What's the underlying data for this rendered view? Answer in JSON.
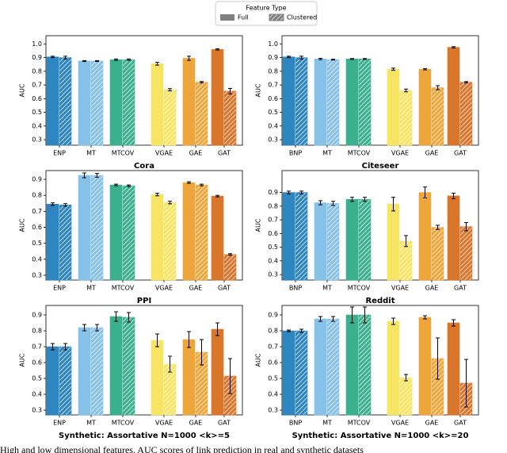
{
  "legend_title": "Feature Type",
  "caption": "High and low dimensional features. AUC scores of link prediction in real and synthetic datasets",
  "chart_data": [
    {
      "type": "bar",
      "title": "Cora",
      "ylabel": "AUC",
      "categories": [
        "ENP",
        "MT",
        "MTCOV",
        "VGAE",
        "GAE",
        "GAT"
      ],
      "category_colors": [
        "#2e86c1",
        "#85c1e9",
        "#3bb08f",
        "#f7e463",
        "#eea63a",
        "#d9762c"
      ],
      "series": [
        {
          "name": "Full",
          "hatch": false,
          "values": [
            0.905,
            0.875,
            0.885,
            0.855,
            0.895,
            0.96
          ],
          "errors": [
            0.005,
            0.003,
            0.005,
            0.01,
            0.015,
            0.005
          ]
        },
        {
          "name": "Clustered",
          "hatch": true,
          "values": [
            0.9,
            0.875,
            0.885,
            0.665,
            0.72,
            0.655
          ],
          "errors": [
            0.01,
            0.003,
            0.005,
            0.008,
            0.005,
            0.02
          ]
        }
      ],
      "ylim": [
        0.26,
        1.06
      ],
      "yticks": [
        0.3,
        0.4,
        0.5,
        0.6,
        0.7,
        0.8,
        0.9,
        {
          "value": 1,
          "label": "1.0"
        }
      ]
    },
    {
      "type": "bar",
      "title": "Citeseer",
      "ylabel": "AUC",
      "categories": [
        "BNP",
        "MT",
        "MTCOV",
        "VGAE",
        "GAE",
        "GAT"
      ],
      "category_colors": [
        "#2e86c1",
        "#85c1e9",
        "#3bb08f",
        "#f7e463",
        "#eea63a",
        "#d9762c"
      ],
      "series": [
        {
          "name": "Full",
          "hatch": false,
          "values": [
            0.905,
            0.89,
            0.89,
            0.815,
            0.815,
            0.975
          ],
          "errors": [
            0.005,
            0.005,
            0.003,
            0.008,
            0.005,
            0.005
          ]
        },
        {
          "name": "Clustered",
          "hatch": true,
          "values": [
            0.9,
            0.885,
            0.89,
            0.66,
            0.68,
            0.72
          ],
          "errors": [
            0.01,
            0.003,
            0.003,
            0.01,
            0.015,
            0.005
          ]
        }
      ],
      "ylim": [
        0.26,
        1.06
      ],
      "yticks": [
        0.3,
        0.4,
        0.5,
        0.6,
        0.7,
        0.8,
        0.9,
        {
          "value": 1,
          "label": "1.0"
        }
      ]
    },
    {
      "type": "bar",
      "title": "PPI",
      "ylabel": "AUC",
      "categories": [
        "ENP",
        "MT",
        "MTCOV",
        "VGAE",
        "GAE",
        "GAT"
      ],
      "category_colors": [
        "#2e86c1",
        "#85c1e9",
        "#3bb08f",
        "#f7e463",
        "#eea63a",
        "#d9762c"
      ],
      "series": [
        {
          "name": "Full",
          "hatch": false,
          "values": [
            0.745,
            0.925,
            0.865,
            0.805,
            0.88,
            0.795
          ],
          "errors": [
            0.008,
            0.015,
            0.005,
            0.008,
            0.005,
            0.005
          ]
        },
        {
          "name": "Clustered",
          "hatch": true,
          "values": [
            0.74,
            0.925,
            0.86,
            0.755,
            0.865,
            0.43
          ],
          "errors": [
            0.008,
            0.012,
            0.005,
            0.008,
            0.005,
            0.005
          ]
        }
      ],
      "ylim": [
        0.27,
        0.955
      ],
      "yticks": [
        0.3,
        0.4,
        0.5,
        0.6,
        0.7,
        0.8,
        0.9
      ]
    },
    {
      "type": "bar",
      "title": "Reddit",
      "ylabel": "AUC",
      "categories": [
        "BNP",
        "MT",
        "MTCOV",
        "VGAE",
        "GAE",
        "GAT"
      ],
      "category_colors": [
        "#2e86c1",
        "#85c1e9",
        "#3bb08f",
        "#f7e463",
        "#eea63a",
        "#d9762c"
      ],
      "series": [
        {
          "name": "Full",
          "hatch": false,
          "values": [
            0.9,
            0.825,
            0.85,
            0.815,
            0.9,
            0.875
          ],
          "errors": [
            0.01,
            0.015,
            0.015,
            0.05,
            0.04,
            0.02
          ]
        },
        {
          "name": "Clustered",
          "hatch": true,
          "values": [
            0.9,
            0.82,
            0.85,
            0.545,
            0.645,
            0.65
          ],
          "errors": [
            0.01,
            0.015,
            0.015,
            0.04,
            0.015,
            0.03
          ]
        }
      ],
      "ylim": [
        0.26,
        1.06
      ],
      "yticks": [
        0.3,
        0.4,
        0.5,
        0.6,
        0.7,
        0.8,
        0.9
      ]
    },
    {
      "type": "bar",
      "title": "Synthetic: Assortative N=1000 <k>=5",
      "ylabel": "AUC",
      "categories": [
        "ENP",
        "MT",
        "MTCOV",
        "VGAE",
        "GAE",
        "GAT"
      ],
      "category_colors": [
        "#2e86c1",
        "#85c1e9",
        "#3bb08f",
        "#f7e463",
        "#eea63a",
        "#d9762c"
      ],
      "series": [
        {
          "name": "Full",
          "hatch": false,
          "values": [
            0.7,
            0.82,
            0.89,
            0.74,
            0.745,
            0.81
          ],
          "errors": [
            0.02,
            0.02,
            0.03,
            0.04,
            0.05,
            0.04
          ]
        },
        {
          "name": "Clustered",
          "hatch": true,
          "values": [
            0.7,
            0.82,
            0.885,
            0.59,
            0.665,
            0.515
          ],
          "errors": [
            0.02,
            0.02,
            0.03,
            0.05,
            0.08,
            0.11
          ]
        }
      ],
      "ylim": [
        0.27,
        0.96
      ],
      "yticks": [
        0.3,
        0.4,
        0.5,
        0.6,
        0.7,
        0.8,
        0.9
      ]
    },
    {
      "type": "bar",
      "title": "Synthetic: Assortative N=1000 <k>=20",
      "ylabel": "AUC",
      "categories": [
        "BNP",
        "MT",
        "MTCOV",
        "VGAE",
        "GAE",
        "GAT"
      ],
      "category_colors": [
        "#2e86c1",
        "#85c1e9",
        "#3bb08f",
        "#f7e463",
        "#eea63a",
        "#d9762c"
      ],
      "series": [
        {
          "name": "Full",
          "hatch": false,
          "values": [
            0.8,
            0.875,
            0.9,
            0.86,
            0.885,
            0.85
          ],
          "errors": [
            0.005,
            0.015,
            0.05,
            0.02,
            0.01,
            0.02
          ]
        },
        {
          "name": "Clustered",
          "hatch": true,
          "values": [
            0.8,
            0.875,
            0.9,
            0.505,
            0.625,
            0.47
          ],
          "errors": [
            0.01,
            0.015,
            0.05,
            0.02,
            0.13,
            0.15
          ]
        }
      ],
      "ylim": [
        0.27,
        0.96
      ],
      "yticks": [
        0.3,
        0.4,
        0.5,
        0.6,
        0.7,
        0.8,
        0.9
      ]
    }
  ]
}
